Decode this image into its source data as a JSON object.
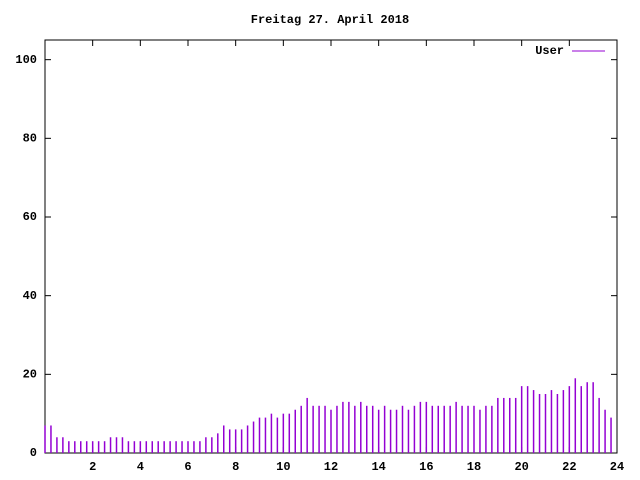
{
  "chart_data": {
    "type": "impulses",
    "title": "Freitag 27. April 2018",
    "x": [
      0,
      0.25,
      0.5,
      0.75,
      1,
      1.25,
      1.5,
      1.75,
      2,
      2.25,
      2.5,
      2.75,
      3,
      3.25,
      3.5,
      3.75,
      4,
      4.25,
      4.5,
      4.75,
      5,
      5.25,
      5.5,
      5.75,
      6,
      6.25,
      6.5,
      6.75,
      7,
      7.25,
      7.5,
      7.75,
      8,
      8.25,
      8.5,
      8.75,
      9,
      9.25,
      9.5,
      9.75,
      10,
      10.25,
      10.5,
      10.75,
      11,
      11.25,
      11.5,
      11.75,
      12,
      12.25,
      12.5,
      12.75,
      13,
      13.25,
      13.5,
      13.75,
      14,
      14.25,
      14.5,
      14.75,
      15,
      15.25,
      15.5,
      15.75,
      16,
      16.25,
      16.5,
      16.75,
      17,
      17.25,
      17.5,
      17.75,
      18,
      18.25,
      18.5,
      18.75,
      19,
      19.25,
      19.5,
      19.75,
      20,
      20.25,
      20.5,
      20.75,
      21,
      21.25,
      21.5,
      21.75,
      22,
      22.25,
      22.5,
      22.75,
      23,
      23.25,
      23.5,
      23.75
    ],
    "series": [
      {
        "name": "User",
        "color": "#9400d3",
        "values": [
          7,
          7,
          4,
          4,
          3,
          3,
          3,
          3,
          3,
          3,
          3,
          4,
          4,
          4,
          3,
          3,
          3,
          3,
          3,
          3,
          3,
          3,
          3,
          3,
          3,
          3,
          3,
          4,
          4,
          5,
          7,
          6,
          6,
          6,
          7,
          8,
          9,
          9,
          10,
          9,
          10,
          10,
          11,
          12,
          14,
          12,
          12,
          12,
          11,
          12,
          13,
          13,
          12,
          13,
          12,
          12,
          11,
          12,
          11,
          11,
          12,
          11,
          12,
          13,
          13,
          12,
          12,
          12,
          12,
          13,
          12,
          12,
          12,
          11,
          12,
          12,
          14,
          14,
          14,
          14,
          17,
          17,
          16,
          15,
          15,
          16,
          15,
          16,
          17,
          19,
          17,
          18,
          18,
          14,
          11,
          9
        ]
      }
    ],
    "xlim": [
      0,
      24
    ],
    "xticks": [
      2,
      4,
      6,
      8,
      10,
      12,
      14,
      16,
      18,
      20,
      22,
      24
    ],
    "ylim": [
      0,
      105
    ],
    "yticks": [
      0,
      20,
      40,
      60,
      80,
      100
    ],
    "legend": "top-right"
  }
}
